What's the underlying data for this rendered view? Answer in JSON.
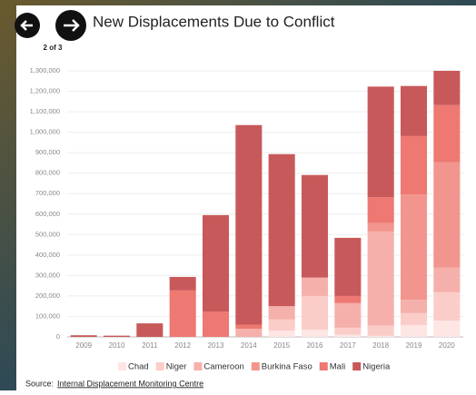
{
  "page_indicator": "2 of 3",
  "chart_data": {
    "type": "bar",
    "stacked": true,
    "title": "New Displacements Due to Conflict",
    "categories": [
      "2009",
      "2010",
      "2011",
      "2012",
      "2013",
      "2014",
      "2015",
      "2016",
      "2017",
      "2018",
      "2019",
      "2020"
    ],
    "series": [
      {
        "name": "Chad",
        "color": "#fde6e4",
        "values": [
          0,
          0,
          0,
          0,
          0,
          0,
          30000,
          35000,
          10000,
          5000,
          58000,
          80000
        ]
      },
      {
        "name": "Niger",
        "color": "#fbcdc9",
        "values": [
          0,
          0,
          0,
          0,
          0,
          0,
          55000,
          165000,
          35000,
          50000,
          58000,
          138000
        ]
      },
      {
        "name": "Cameroon",
        "color": "#f6b0ab",
        "values": [
          0,
          0,
          0,
          0,
          0,
          40000,
          65000,
          90000,
          120000,
          460000,
          65000,
          120000
        ]
      },
      {
        "name": "Burkina Faso",
        "color": "#f2958e",
        "values": [
          0,
          0,
          0,
          0,
          0,
          0,
          0,
          0,
          0,
          42000,
          515000,
          515000
        ]
      },
      {
        "name": "Mali",
        "color": "#ee7872",
        "values": [
          0,
          0,
          0,
          227000,
          124000,
          20000,
          0,
          0,
          35000,
          125000,
          285000,
          280000
        ]
      },
      {
        "name": "Nigeria",
        "color": "#c8595a",
        "values": [
          8000,
          6000,
          66000,
          66000,
          471000,
          975000,
          743000,
          501000,
          284000,
          541000,
          245000,
          167000
        ]
      }
    ],
    "ylim": [
      0,
      1300000
    ],
    "yticks": [
      0,
      {
        "value": 100000,
        "label": "100,000"
      },
      {
        "value": 200000,
        "label": "200,000"
      },
      {
        "value": 300000,
        "label": "300,000"
      },
      {
        "value": 400000,
        "label": "400,000"
      },
      {
        "value": 500000,
        "label": "500,000"
      },
      {
        "value": 600000,
        "label": "600,000"
      },
      {
        "value": 700000,
        "label": "700,000"
      },
      {
        "value": 800000,
        "label": "800,000"
      },
      {
        "value": 900000,
        "label": "900,000"
      },
      {
        "value": 1000000,
        "label": "1,000,000"
      },
      {
        "value": 1100000,
        "label": "1,100,000"
      },
      {
        "value": 1200000,
        "label": "1,200,000"
      },
      {
        "value": 1300000,
        "label": "1,300,000"
      }
    ],
    "grid": true,
    "legend": "bottom"
  },
  "source": {
    "label": "Source:",
    "link": "Internal Displacement Monitoring Centre"
  }
}
